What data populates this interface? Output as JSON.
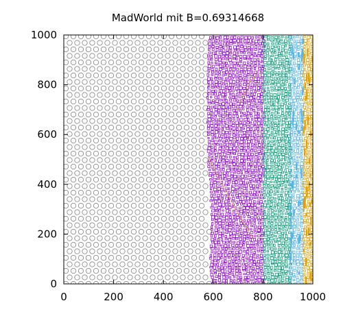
{
  "chart_data": {
    "type": "scatter",
    "title": "MadWorld mit B=0.69314668",
    "xlabel": "",
    "ylabel": "",
    "xlim": [
      0,
      1000
    ],
    "ylim": [
      0,
      1000
    ],
    "x_ticks": [
      0,
      200,
      400,
      600,
      800,
      1000
    ],
    "y_ticks": [
      0,
      200,
      400,
      600,
      800,
      1000
    ],
    "x_tick_labels": [
      "0",
      "200",
      "400",
      "600",
      "800",
      "1000"
    ],
    "y_tick_labels": [
      "0",
      "200",
      "400",
      "600",
      "800",
      "1000"
    ],
    "grid": false,
    "legend": "none",
    "regions": [
      {
        "color": "#8c8c8c",
        "pattern": "hexagonal",
        "x_range": [
          0,
          575
        ],
        "y_range": [
          0,
          1000
        ]
      },
      {
        "color": "#9400d3",
        "pattern": "dense-cells",
        "x_range": [
          575,
          800
        ],
        "y_range": [
          0,
          1000
        ]
      },
      {
        "color": "#009e73",
        "pattern": "dense-cells",
        "x_range": [
          800,
          905
        ],
        "y_range": [
          0,
          1000
        ]
      },
      {
        "color": "#56b4e9",
        "pattern": "dense-cells",
        "x_range": [
          905,
          960
        ],
        "y_range": [
          0,
          1000
        ]
      },
      {
        "color": "#e69f00",
        "pattern": "dense-cells",
        "x_range": [
          960,
          1000
        ],
        "y_range": [
          0,
          1000
        ]
      }
    ],
    "boundary_profile": [
      [
        0,
        590
      ],
      [
        100,
        585
      ],
      [
        200,
        590
      ],
      [
        300,
        588
      ],
      [
        400,
        585
      ],
      [
        500,
        575
      ],
      [
        560,
        578
      ],
      [
        600,
        575
      ],
      [
        700,
        575
      ],
      [
        800,
        575
      ],
      [
        900,
        575
      ],
      [
        1000,
        580
      ]
    ],
    "defect_lines": [
      {
        "color": "#e69f00",
        "points": [
          [
            580,
            510
          ],
          [
            620,
            430
          ],
          [
            680,
            320
          ],
          [
            720,
            250
          ],
          [
            760,
            180
          ]
        ]
      },
      {
        "color": "#e69f00",
        "points": [
          [
            700,
            700
          ],
          [
            740,
            800
          ],
          [
            790,
            860
          ]
        ]
      }
    ]
  }
}
